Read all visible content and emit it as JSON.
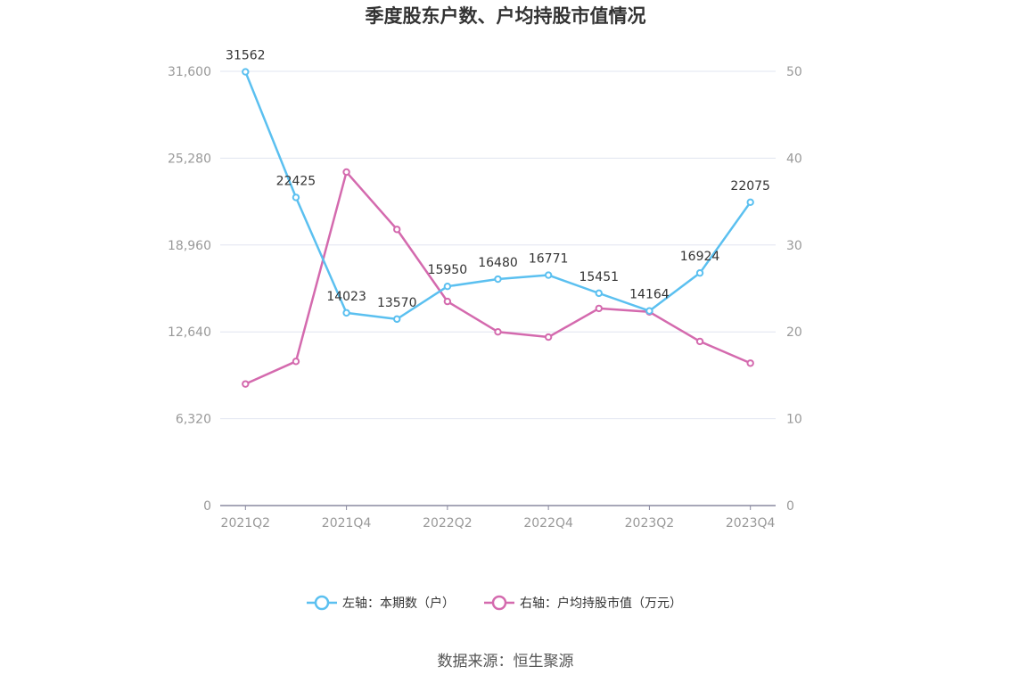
{
  "title": "季度股东户数、户均持股市值情况",
  "source": "数据来源：恒生聚源",
  "colors": {
    "left_series": "#5bc0f0",
    "right_series": "#d46aae",
    "grid": "#e0e4f0",
    "axis": "#8a8aa0"
  },
  "chart_data": {
    "type": "line",
    "categories": [
      "2021Q2",
      "2021Q3",
      "2021Q4",
      "2022Q1",
      "2022Q2",
      "2022Q3",
      "2022Q4",
      "2023Q1",
      "2023Q2",
      "2023Q3",
      "2023Q4"
    ],
    "x_tick_labels": [
      "2021Q2",
      "2021Q4",
      "2022Q2",
      "2022Q4",
      "2023Q2",
      "2023Q4"
    ],
    "y_left": {
      "ylim": [
        0,
        31600
      ],
      "ticks": [
        "0",
        "6,320",
        "12,640",
        "18,960",
        "25,280",
        "31,600"
      ]
    },
    "y_right": {
      "ylim": [
        0,
        50
      ],
      "ticks": [
        "0",
        "10",
        "20",
        "30",
        "40",
        "50"
      ]
    },
    "grid": true,
    "legend_position": "bottom-center",
    "series": [
      {
        "name": "左轴：本期数（户）",
        "axis": "left",
        "values": [
          31562,
          22425,
          14023,
          13570,
          15950,
          16480,
          16771,
          15451,
          14164,
          16924,
          22075
        ],
        "labels": [
          "31562",
          "22425",
          "14023",
          "13570",
          "15950",
          "16480",
          "16771",
          "15451",
          "14164",
          "16924",
          "22075"
        ]
      },
      {
        "name": "右轴：户均持股市值（万元）",
        "axis": "right",
        "values": [
          14.0,
          16.6,
          38.4,
          31.8,
          23.5,
          20.0,
          19.4,
          22.7,
          22.3,
          18.9,
          16.4
        ]
      }
    ]
  }
}
